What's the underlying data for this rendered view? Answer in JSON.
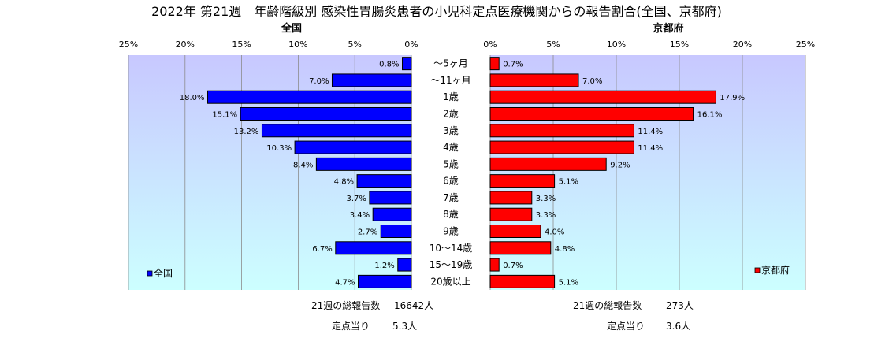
{
  "chart_data": {
    "type": "bar",
    "orientation": "horizontal",
    "title": "2022年 第21週　年齢階級別 感染性胃腸炎患者の小児科定点医療機関からの報告割合(全国、京都府)",
    "categories": [
      "～5ヶ月",
      "～11ヶ月",
      "1歳",
      "2歳",
      "3歳",
      "4歳",
      "5歳",
      "6歳",
      "7歳",
      "8歳",
      "9歳",
      "10～14歳",
      "15～19歳",
      "20歳以上"
    ],
    "xlim": [
      0,
      25
    ],
    "x_ticks": [
      "0%",
      "5%",
      "10%",
      "15%",
      "20%",
      "25%"
    ],
    "grid": true,
    "series": [
      {
        "name": "全国",
        "panel_title": "全国",
        "side": "left",
        "color": "#0000ff",
        "values": [
          0.8,
          7.0,
          18.0,
          15.1,
          13.2,
          10.3,
          8.4,
          4.8,
          3.7,
          3.4,
          2.7,
          6.7,
          1.2,
          4.7
        ],
        "labels": [
          "0.8%",
          "7.0%",
          "18.0%",
          "15.1%",
          "13.2%",
          "10.3%",
          "8.4%",
          "4.8%",
          "3.7%",
          "3.4%",
          "2.7%",
          "6.7%",
          "1.2%",
          "4.7%"
        ],
        "legend": "全国",
        "legend_position": "bottom-left"
      },
      {
        "name": "京都府",
        "panel_title": "京都府",
        "side": "right",
        "color": "#ff0000",
        "values": [
          0.7,
          7.0,
          17.9,
          16.1,
          11.4,
          11.4,
          9.2,
          5.1,
          3.3,
          3.3,
          4.0,
          4.8,
          0.7,
          5.1
        ],
        "labels": [
          "0.7%",
          "7.0%",
          "17.9%",
          "16.1%",
          "11.4%",
          "11.4%",
          "9.2%",
          "5.1%",
          "3.3%",
          "3.3%",
          "4.0%",
          "4.8%",
          "0.7%",
          "5.1%"
        ],
        "legend": "京都府",
        "legend_position": "bottom-right"
      }
    ],
    "footnotes": {
      "left": {
        "total_label": "21週の総報告数",
        "total_value": "16642人",
        "per_label": "定点当り",
        "per_value": "5.3人"
      },
      "right": {
        "total_label": "21週の総報告数",
        "total_value": "273人",
        "per_label": "定点当り",
        "per_value": "3.6人"
      }
    }
  }
}
